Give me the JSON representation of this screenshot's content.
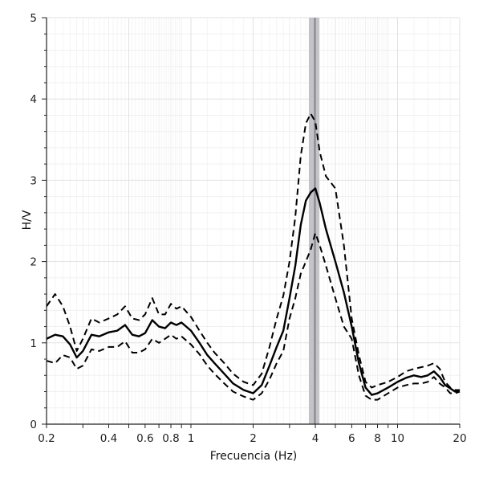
{
  "chart_data": {
    "type": "line",
    "xlabel": "Frecuencia (Hz)",
    "ylabel": "H/V",
    "x_scale": "log",
    "xlim": [
      0.2,
      20
    ],
    "ylim": [
      0,
      5
    ],
    "grid": true,
    "x_tick_labels": [
      {
        "value": 0.2,
        "label": "0.2"
      },
      {
        "value": 0.4,
        "label": "0.4"
      },
      {
        "value": 0.6,
        "label": "0.6"
      },
      {
        "value": 0.8,
        "label": "0.8"
      },
      {
        "value": 1,
        "label": "1"
      },
      {
        "value": 2,
        "label": "2"
      },
      {
        "value": 4,
        "label": "4"
      },
      {
        "value": 6,
        "label": "6"
      },
      {
        "value": 8,
        "label": "8"
      },
      {
        "value": 10,
        "label": "10"
      },
      {
        "value": 20,
        "label": "20"
      }
    ],
    "y_tick_labels": [
      {
        "value": 0,
        "label": "0"
      },
      {
        "value": 1,
        "label": "1"
      },
      {
        "value": 2,
        "label": "2"
      },
      {
        "value": 3,
        "label": "3"
      },
      {
        "value": 4,
        "label": "4"
      },
      {
        "value": 5,
        "label": "5"
      }
    ],
    "peak_band": {
      "x_min": 3.72,
      "x_max": 4.18,
      "center": 3.98,
      "band_color": "#c4c4c8",
      "center_color": "#8c8c94"
    },
    "series": [
      {
        "style": "solid",
        "color": "#000000",
        "x": [
          0.2,
          0.22,
          0.24,
          0.26,
          0.28,
          0.3,
          0.33,
          0.36,
          0.4,
          0.44,
          0.48,
          0.52,
          0.56,
          0.6,
          0.65,
          0.7,
          0.75,
          0.8,
          0.85,
          0.9,
          1,
          1.1,
          1.2,
          1.3,
          1.45,
          1.6,
          1.8,
          2,
          2.2,
          2.4,
          2.6,
          2.8,
          3,
          3.2,
          3.4,
          3.6,
          3.8,
          4,
          4.2,
          4.5,
          5,
          5.5,
          6,
          6.5,
          7,
          7.5,
          8,
          9,
          10,
          11,
          12,
          13,
          14,
          15,
          16,
          17,
          18,
          19,
          20
        ],
        "y": [
          1.05,
          1.1,
          1.08,
          0.98,
          0.82,
          0.9,
          1.1,
          1.08,
          1.13,
          1.15,
          1.22,
          1.1,
          1.08,
          1.12,
          1.28,
          1.2,
          1.18,
          1.25,
          1.22,
          1.25,
          1.15,
          1.0,
          0.85,
          0.75,
          0.62,
          0.5,
          0.42,
          0.38,
          0.48,
          0.72,
          0.95,
          1.15,
          1.55,
          1.95,
          2.45,
          2.75,
          2.85,
          2.9,
          2.72,
          2.4,
          2.0,
          1.62,
          1.2,
          0.75,
          0.45,
          0.36,
          0.38,
          0.45,
          0.52,
          0.57,
          0.6,
          0.58,
          0.6,
          0.65,
          0.58,
          0.48,
          0.44,
          0.4,
          0.42
        ]
      },
      {
        "style": "dashed",
        "color": "#000000",
        "x": [
          0.2,
          0.22,
          0.24,
          0.26,
          0.28,
          0.3,
          0.33,
          0.36,
          0.4,
          0.44,
          0.48,
          0.52,
          0.56,
          0.6,
          0.65,
          0.7,
          0.75,
          0.8,
          0.85,
          0.9,
          1,
          1.1,
          1.2,
          1.3,
          1.45,
          1.6,
          1.8,
          2,
          2.2,
          2.4,
          2.6,
          2.8,
          3,
          3.2,
          3.4,
          3.6,
          3.8,
          4,
          4.2,
          4.5,
          5,
          5.5,
          6,
          6.5,
          7,
          7.5,
          8,
          9,
          10,
          11,
          12,
          13,
          14,
          15,
          16,
          17,
          18,
          19,
          20
        ],
        "y": [
          1.45,
          1.6,
          1.45,
          1.2,
          0.9,
          1.05,
          1.3,
          1.25,
          1.3,
          1.35,
          1.45,
          1.3,
          1.28,
          1.35,
          1.55,
          1.35,
          1.35,
          1.48,
          1.42,
          1.45,
          1.32,
          1.15,
          1.0,
          0.88,
          0.75,
          0.62,
          0.52,
          0.48,
          0.62,
          0.95,
          1.3,
          1.58,
          2.0,
          2.55,
          3.3,
          3.7,
          3.82,
          3.72,
          3.35,
          3.05,
          2.9,
          2.2,
          1.3,
          0.85,
          0.52,
          0.45,
          0.48,
          0.52,
          0.58,
          0.65,
          0.68,
          0.7,
          0.72,
          0.75,
          0.68,
          0.52,
          0.45,
          0.42,
          0.42
        ]
      },
      {
        "style": "dashed",
        "color": "#000000",
        "x": [
          0.2,
          0.22,
          0.24,
          0.26,
          0.28,
          0.3,
          0.33,
          0.36,
          0.4,
          0.44,
          0.48,
          0.52,
          0.56,
          0.6,
          0.65,
          0.7,
          0.75,
          0.8,
          0.85,
          0.9,
          1,
          1.1,
          1.2,
          1.3,
          1.45,
          1.6,
          1.8,
          2,
          2.2,
          2.4,
          2.6,
          2.8,
          3,
          3.2,
          3.4,
          3.6,
          3.8,
          4,
          4.2,
          4.5,
          5,
          5.5,
          6,
          6.5,
          7,
          7.5,
          8,
          9,
          10,
          11,
          12,
          13,
          14,
          15,
          16,
          17,
          18,
          19,
          20
        ],
        "y": [
          0.78,
          0.75,
          0.85,
          0.82,
          0.68,
          0.72,
          0.92,
          0.9,
          0.95,
          0.95,
          1.02,
          0.88,
          0.88,
          0.92,
          1.05,
          1.0,
          1.05,
          1.1,
          1.05,
          1.08,
          0.98,
          0.86,
          0.72,
          0.62,
          0.5,
          0.4,
          0.34,
          0.3,
          0.38,
          0.55,
          0.75,
          0.9,
          1.3,
          1.55,
          1.85,
          2.0,
          2.15,
          2.35,
          2.2,
          1.95,
          1.55,
          1.2,
          1.05,
          0.6,
          0.35,
          0.3,
          0.3,
          0.38,
          0.45,
          0.48,
          0.5,
          0.5,
          0.52,
          0.58,
          0.5,
          0.45,
          0.38,
          0.38,
          0.4
        ]
      }
    ]
  }
}
